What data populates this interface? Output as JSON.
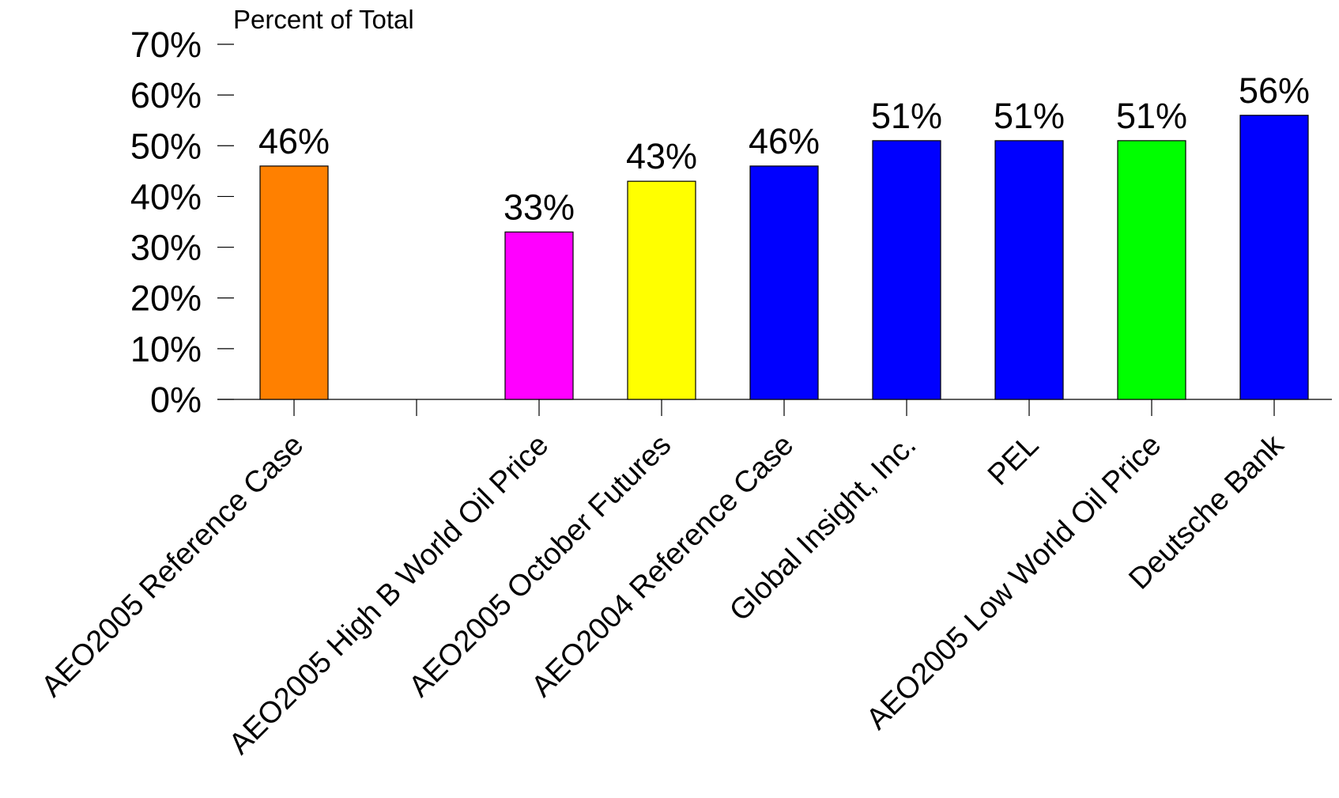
{
  "chart_data": {
    "type": "bar",
    "ylabel": "Percent of Total",
    "ylim": [
      0,
      70
    ],
    "y_ticks": [
      "0%",
      "10%",
      "20%",
      "30%",
      "40%",
      "50%",
      "60%",
      "70%"
    ],
    "y_tick_values": [
      0,
      10,
      20,
      30,
      40,
      50,
      60,
      70
    ],
    "categories": [
      "AEO2005 Reference Case",
      "",
      "AEO2005 High B World Oil Price",
      "AEO2005 October Futures",
      "AEO2004 Reference Case",
      "Global Insight, Inc.",
      "PEL",
      "AEO2005 Low World Oil Price",
      "Deutsche Bank"
    ],
    "values": [
      46,
      null,
      33,
      43,
      46,
      51,
      51,
      51,
      56
    ],
    "data_labels": [
      "46%",
      "",
      "33%",
      "43%",
      "46%",
      "51%",
      "51%",
      "51%",
      "56%"
    ],
    "colors": [
      "#FF8000",
      "",
      "#FF00FF",
      "#FFFF00",
      "#0000FF",
      "#0000FF",
      "#0000FF",
      "#00FF00",
      "#0000FF"
    ],
    "grid": false,
    "legend": "none"
  }
}
